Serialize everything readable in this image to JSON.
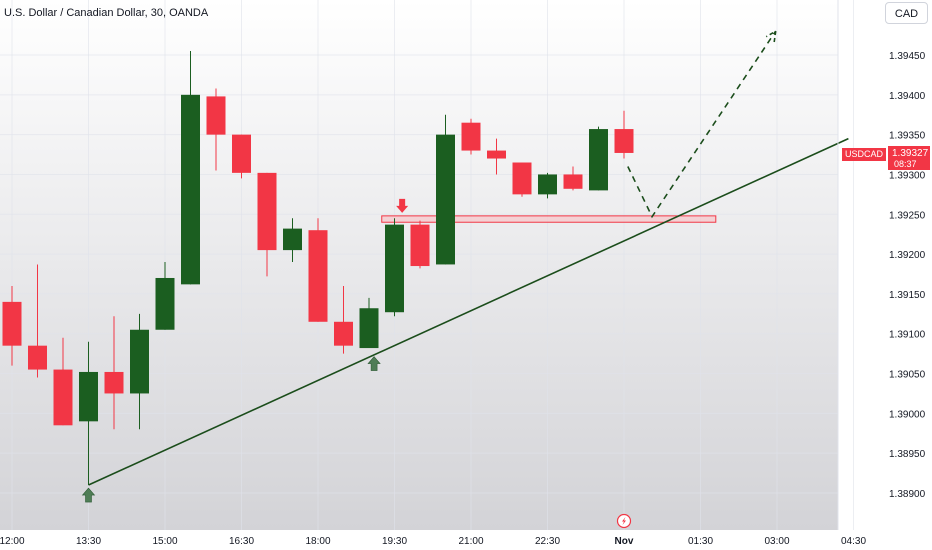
{
  "header": {
    "title": "U.S. Dollar / Canadian Dollar, 30, OANDA",
    "currency_button": "CAD"
  },
  "price_badge": {
    "symbol": "USDCAD",
    "price": "1.39327",
    "countdown": "08:37"
  },
  "icons": {
    "event_marker": "lightning-icon",
    "up_arrow": "up-arrow-icon",
    "down_arrow": "down-arrow-icon"
  },
  "colors": {
    "bull": "#1b5e20",
    "bear": "#f23645",
    "trendline": "#1b4d1b",
    "zone_fill": "#f7c5c9",
    "zone_border": "#f23645"
  },
  "chart_data": {
    "type": "candlestick",
    "y_axis": {
      "ylim": [
        1.38875,
        1.39485
      ],
      "ticks": [
        "1.38900",
        "1.38950",
        "1.39000",
        "1.39050",
        "1.39100",
        "1.39150",
        "1.39200",
        "1.39250",
        "1.39300",
        "1.39350",
        "1.39400",
        "1.39450"
      ]
    },
    "x_axis": {
      "ticks": [
        {
          "label": "12:00",
          "index": 0
        },
        {
          "label": "13:30",
          "index": 3
        },
        {
          "label": "15:00",
          "index": 6
        },
        {
          "label": "16:30",
          "index": 9
        },
        {
          "label": "18:00",
          "index": 12
        },
        {
          "label": "19:30",
          "index": 15
        },
        {
          "label": "21:00",
          "index": 18
        },
        {
          "label": "22:30",
          "index": 21
        },
        {
          "label": "Nov",
          "index": 24
        },
        {
          "label": "01:30",
          "index": 27
        },
        {
          "label": "03:00",
          "index": 30
        },
        {
          "label": "04:30",
          "index": 33
        }
      ]
    },
    "candles": [
      {
        "o": 1.3914,
        "h": 1.3916,
        "l": 1.3906,
        "c": 1.39085
      },
      {
        "o": 1.39085,
        "h": 1.39187,
        "l": 1.39045,
        "c": 1.39055
      },
      {
        "o": 1.39055,
        "h": 1.39095,
        "l": 1.38985,
        "c": 1.38985
      },
      {
        "o": 1.3899,
        "h": 1.3909,
        "l": 1.3891,
        "c": 1.39052
      },
      {
        "o": 1.39052,
        "h": 1.39122,
        "l": 1.3898,
        "c": 1.39025
      },
      {
        "o": 1.39025,
        "h": 1.39125,
        "l": 1.3898,
        "c": 1.39105
      },
      {
        "o": 1.39105,
        "h": 1.3919,
        "l": 1.39105,
        "c": 1.3917
      },
      {
        "o": 1.39162,
        "h": 1.39455,
        "l": 1.39162,
        "c": 1.394
      },
      {
        "o": 1.39398,
        "h": 1.39408,
        "l": 1.39305,
        "c": 1.3935
      },
      {
        "o": 1.3935,
        "h": 1.3935,
        "l": 1.39295,
        "c": 1.39302
      },
      {
        "o": 1.39302,
        "h": 1.39302,
        "l": 1.39172,
        "c": 1.39205
      },
      {
        "o": 1.39205,
        "h": 1.39245,
        "l": 1.3919,
        "c": 1.39232
      },
      {
        "o": 1.3923,
        "h": 1.39245,
        "l": 1.39115,
        "c": 1.39115
      },
      {
        "o": 1.39115,
        "h": 1.3916,
        "l": 1.39075,
        "c": 1.39085
      },
      {
        "o": 1.39082,
        "h": 1.39145,
        "l": 1.39082,
        "c": 1.39132
      },
      {
        "o": 1.39127,
        "h": 1.39245,
        "l": 1.39122,
        "c": 1.39237
      },
      {
        "o": 1.39237,
        "h": 1.39242,
        "l": 1.39182,
        "c": 1.39185
      },
      {
        "o": 1.39187,
        "h": 1.39375,
        "l": 1.39187,
        "c": 1.3935
      },
      {
        "o": 1.39365,
        "h": 1.3937,
        "l": 1.39325,
        "c": 1.3933
      },
      {
        "o": 1.3933,
        "h": 1.39345,
        "l": 1.393,
        "c": 1.3932
      },
      {
        "o": 1.39315,
        "h": 1.39315,
        "l": 1.39272,
        "c": 1.39275
      },
      {
        "o": 1.39275,
        "h": 1.39302,
        "l": 1.3927,
        "c": 1.393
      },
      {
        "o": 1.393,
        "h": 1.3931,
        "l": 1.3928,
        "c": 1.39282
      },
      {
        "o": 1.3928,
        "h": 1.3936,
        "l": 1.3928,
        "c": 1.39357
      },
      {
        "o": 1.39357,
        "h": 1.3938,
        "l": 1.3932,
        "c": 1.39327
      }
    ],
    "trendline": {
      "start": {
        "index": 3.0,
        "price": 1.3891
      },
      "end": {
        "index": 32.8,
        "price": 1.39345
      }
    },
    "resistance_zone": {
      "start_index": 14.5,
      "end_index": 27.6,
      "price_low": 1.3924,
      "price_high": 1.39248
    },
    "projection": [
      {
        "index": 24.15,
        "price": 1.3931
      },
      {
        "index": 25.1,
        "price": 1.39247
      },
      {
        "index": 29.95,
        "price": 1.3948
      }
    ],
    "arrows": [
      {
        "dir": "up",
        "index": 3.0,
        "price": 1.3891
      },
      {
        "dir": "up",
        "index": 14.2,
        "price": 1.39075
      },
      {
        "dir": "down",
        "index": 15.3,
        "price": 1.39248
      }
    ],
    "event_index": 24.0
  }
}
